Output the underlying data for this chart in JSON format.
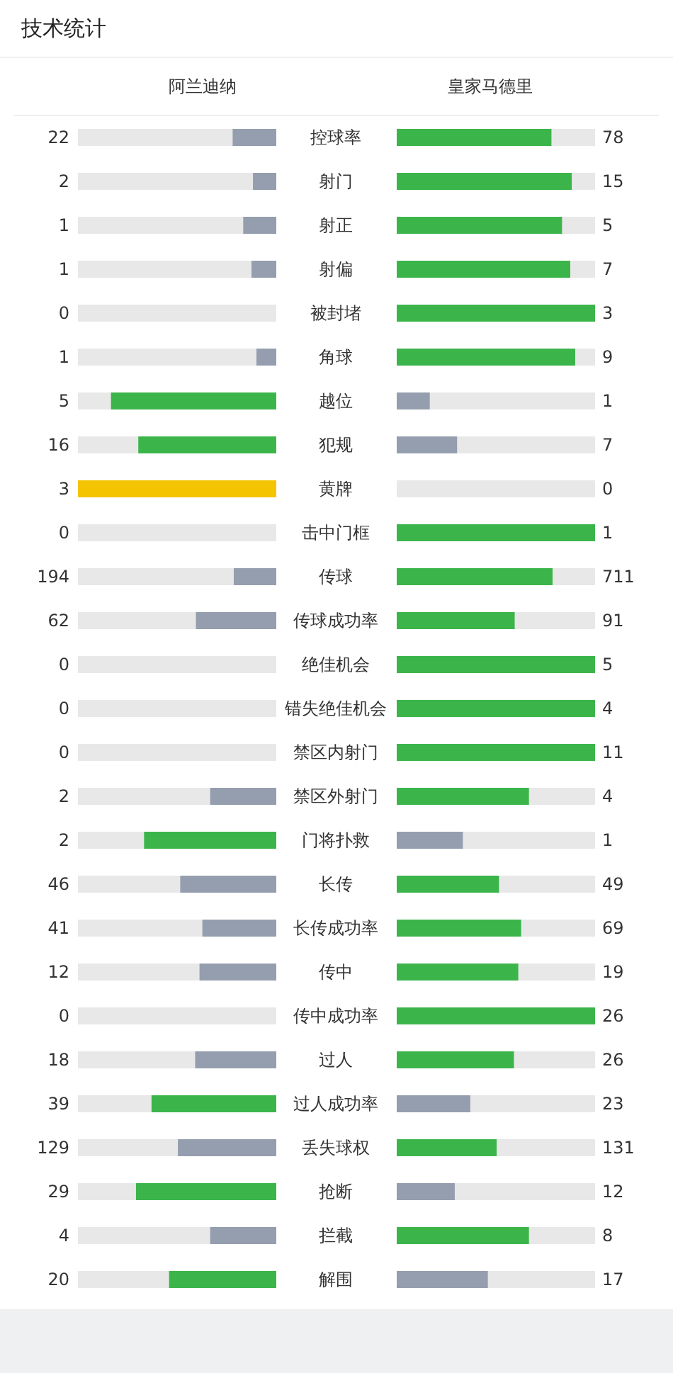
{
  "chart_data": {
    "type": "other",
    "title": "技术统计",
    "data_labels": true,
    "categories": [
      "控球率",
      "射门",
      "射正",
      "射偏",
      "被封堵",
      "角球",
      "越位",
      "犯规",
      "黄牌",
      "击中门框",
      "传球",
      "传球成功率",
      "绝佳机会",
      "错失绝佳机会",
      "禁区内射门",
      "禁区外射门",
      "门将扑救",
      "长传",
      "长传成功率",
      "传中",
      "传中成功率",
      "过人",
      "过人成功率",
      "丢失球权",
      "抢断",
      "拦截",
      "解围"
    ],
    "series": [
      {
        "name": "阿兰迪纳",
        "values": [
          22,
          2,
          1,
          1,
          0,
          1,
          5,
          16,
          3,
          0,
          194,
          62,
          0,
          0,
          0,
          2,
          2,
          46,
          41,
          12,
          0,
          18,
          39,
          129,
          29,
          4,
          20
        ],
        "colors": [
          "#959eae",
          "#959eae",
          "#959eae",
          "#959eae",
          null,
          "#959eae",
          "#3bb54a",
          "#3bb54a",
          "#f5c400",
          null,
          "#959eae",
          "#959eae",
          null,
          null,
          null,
          "#959eae",
          "#3bb54a",
          "#959eae",
          "#959eae",
          "#959eae",
          null,
          "#959eae",
          "#3bb54a",
          "#959eae",
          "#3bb54a",
          "#959eae",
          "#3bb54a"
        ]
      },
      {
        "name": "皇家马德里",
        "values": [
          78,
          15,
          5,
          7,
          3,
          9,
          1,
          7,
          0,
          1,
          711,
          91,
          5,
          4,
          11,
          4,
          1,
          49,
          69,
          19,
          26,
          26,
          23,
          131,
          12,
          8,
          17
        ],
        "colors": [
          "#3bb54a",
          "#3bb54a",
          "#3bb54a",
          "#3bb54a",
          "#3bb54a",
          "#3bb54a",
          "#959eae",
          "#959eae",
          null,
          "#3bb54a",
          "#3bb54a",
          "#3bb54a",
          "#3bb54a",
          "#3bb54a",
          "#3bb54a",
          "#3bb54a",
          "#959eae",
          "#3bb54a",
          "#3bb54a",
          "#3bb54a",
          "#3bb54a",
          "#3bb54a",
          "#959eae",
          "#3bb54a",
          "#959eae",
          "#3bb54a",
          "#959eae"
        ]
      }
    ]
  }
}
